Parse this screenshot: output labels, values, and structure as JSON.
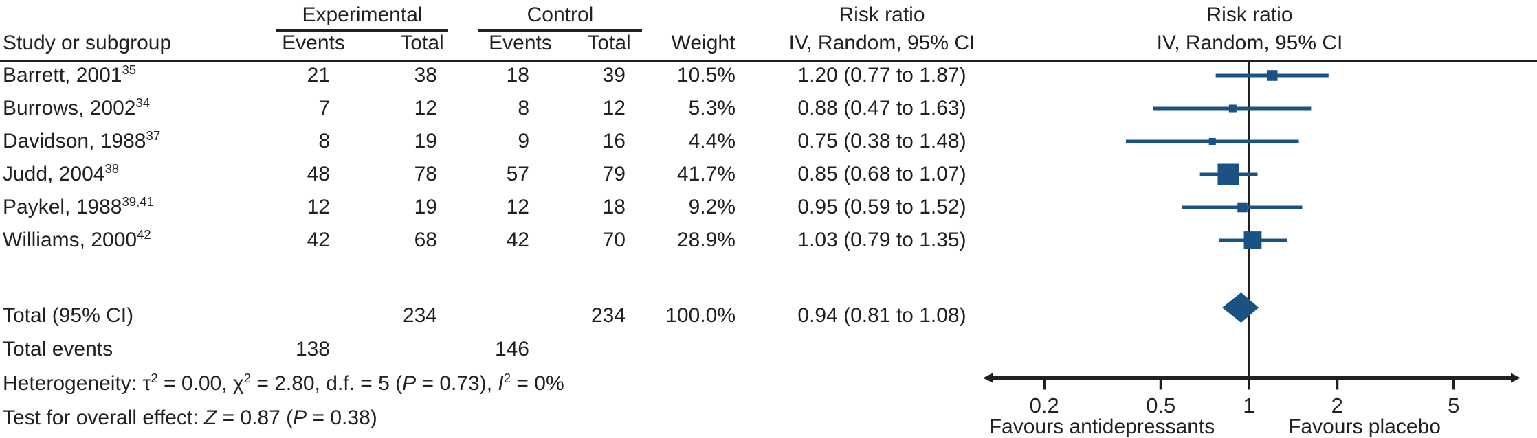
{
  "colors": {
    "marker_blue": "#1a5284",
    "line_black": "#231f20",
    "background": "#ffffff"
  },
  "header": {
    "group_experimental": "Experimental",
    "group_control": "Control",
    "study": "Study or subgroup",
    "events": "Events",
    "total": "Total",
    "weight": "Weight",
    "risk_ratio_text_col": "Risk ratio",
    "risk_ratio_text_sub": "IV, Random, 95% CI",
    "risk_ratio_plot_col": "Risk ratio",
    "risk_ratio_plot_sub": "IV, Random, 95% CI"
  },
  "chart_data": {
    "type": "forest",
    "effect_measure": "Risk ratio, IV, Random, 95% CI",
    "x_axis": {
      "scale": "log",
      "ticks": [
        0.2,
        0.5,
        1,
        2,
        5
      ],
      "null_line": 1,
      "range_approx": [
        0.13,
        8
      ],
      "left_label": "Favours antidepressants",
      "right_label": "Favours placebo"
    },
    "studies": [
      {
        "name": "Barrett, 2001",
        "ref": "35",
        "exp_events": 21,
        "exp_total": 38,
        "ctrl_events": 18,
        "ctrl_total": 39,
        "weight": 10.5,
        "weight_label": "10.5%",
        "rr": 1.2,
        "ci_low": 0.77,
        "ci_high": 1.87,
        "rr_text": "1.20 (0.77 to 1.87)"
      },
      {
        "name": "Burrows, 2002",
        "ref": "34",
        "exp_events": 7,
        "exp_total": 12,
        "ctrl_events": 8,
        "ctrl_total": 12,
        "weight": 5.3,
        "weight_label": "5.3%",
        "rr": 0.88,
        "ci_low": 0.47,
        "ci_high": 1.63,
        "rr_text": "0.88 (0.47 to 1.63)"
      },
      {
        "name": "Davidson, 1988",
        "ref": "37",
        "exp_events": 8,
        "exp_total": 19,
        "ctrl_events": 9,
        "ctrl_total": 16,
        "weight": 4.4,
        "weight_label": "4.4%",
        "rr": 0.75,
        "ci_low": 0.38,
        "ci_high": 1.48,
        "rr_text": "0.75 (0.38 to 1.48)"
      },
      {
        "name": "Judd, 2004",
        "ref": "38",
        "exp_events": 48,
        "exp_total": 78,
        "ctrl_events": 57,
        "ctrl_total": 79,
        "weight": 41.7,
        "weight_label": "41.7%",
        "rr": 0.85,
        "ci_low": 0.68,
        "ci_high": 1.07,
        "rr_text": "0.85 (0.68 to 1.07)"
      },
      {
        "name": "Paykel, 1988",
        "ref": "39,41",
        "exp_events": 12,
        "exp_total": 19,
        "ctrl_events": 12,
        "ctrl_total": 18,
        "weight": 9.2,
        "weight_label": "9.2%",
        "rr": 0.95,
        "ci_low": 0.59,
        "ci_high": 1.52,
        "rr_text": "0.95 (0.59 to 1.52)"
      },
      {
        "name": "Williams, 2000",
        "ref": "42",
        "exp_events": 42,
        "exp_total": 68,
        "ctrl_events": 42,
        "ctrl_total": 70,
        "weight": 28.9,
        "weight_label": "28.9%",
        "rr": 1.03,
        "ci_low": 0.79,
        "ci_high": 1.35,
        "rr_text": "1.03 (0.79 to 1.35)"
      }
    ],
    "total": {
      "label": "Total (95% CI)",
      "exp_total": 234,
      "ctrl_total": 234,
      "weight_label": "100.0%",
      "rr": 0.94,
      "ci_low": 0.81,
      "ci_high": 1.08,
      "rr_text": "0.94 (0.81 to 1.08)"
    },
    "total_events": {
      "label": "Total events",
      "exp_events": 138,
      "ctrl_events": 146
    }
  },
  "footer": {
    "heterogeneity": {
      "p1": "Heterogeneity: τ",
      "s1": "2",
      "p2": " = 0.00, χ",
      "s2": "2",
      "p3": " = 2.80, d.f. = 5 (",
      "p4": "P",
      "p5": " = 0.73), ",
      "p6": "I",
      "s3": "2",
      "p7": " = 0%"
    },
    "overall": {
      "p1": "Test for overall effect: ",
      "p2": "Z",
      "p3": " = 0.87 (",
      "p4": "P",
      "p5": " = 0.38)"
    }
  }
}
